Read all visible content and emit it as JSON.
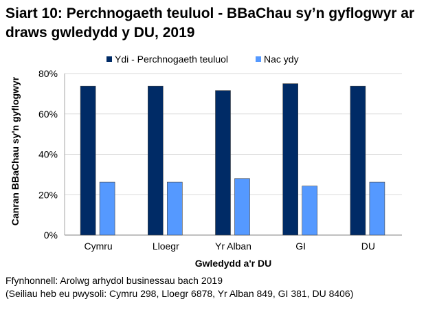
{
  "chart_data": {
    "type": "bar",
    "title": "Siart 10: Perchnogaeth teuluol - BBaChau sy’n gyflogwyr ar draws gwledydd y DU, 2019",
    "categories": [
      "Cymru",
      "Lloegr",
      "Yr Alban",
      "GI",
      "DU"
    ],
    "series": [
      {
        "name": "Ydi - Perchnogaeth teuluol",
        "color": "#002b66",
        "values": [
          73.8,
          73.8,
          71.6,
          75.0,
          73.8
        ]
      },
      {
        "name": "Nac ydy",
        "color": "#5599ff",
        "values": [
          26.2,
          26.2,
          28.0,
          24.3,
          26.2
        ]
      }
    ],
    "xlabel": "Gwledydd a'r DU",
    "ylabel": "Canran BBaChau sy'n gyflogwyr",
    "ylim": [
      0,
      80
    ],
    "yticks": [
      "0%",
      "20%",
      "40%",
      "60%",
      "80%"
    ],
    "grid": true,
    "legend_position": "top"
  },
  "source": "Ffynhonnell: Arolwg arhydol businessau bach 2019",
  "note": "(Seiliau heb eu pwysoli: Cymru 298, Lloegr 6878, Yr Alban 849, GI 381, DU 8406)"
}
